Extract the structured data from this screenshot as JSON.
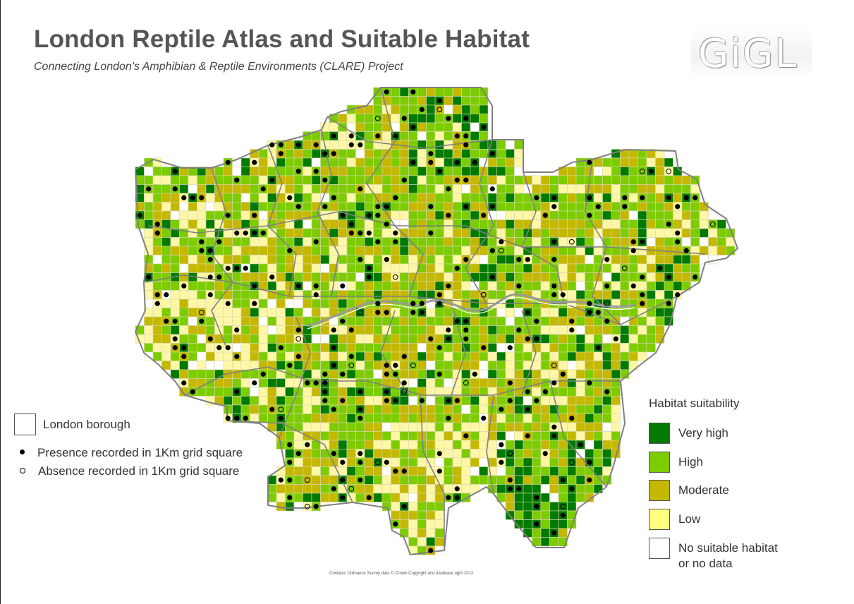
{
  "title": "London Reptile Atlas and Suitable Habitat",
  "subtitle": "Connecting London's Amphibian & Reptile Environments (CLARE) Project",
  "logo_text": "GiGL",
  "legend_left": {
    "borough_label": "London borough",
    "presence_label": "Presence recorded in 1Km grid square",
    "absence_label": "Absence recorded in 1Km grid square"
  },
  "legend_right": {
    "title": "Habitat suitability",
    "items": [
      {
        "label": "Very high",
        "color": "#007a00"
      },
      {
        "label": "High",
        "color": "#7dcc00"
      },
      {
        "label": "Moderate",
        "color": "#c4b800"
      },
      {
        "label": "Low",
        "color": "#ffff80"
      },
      {
        "label": "No suitable habitat or no data",
        "line1": "No suitable habitat",
        "line2": "or no data",
        "color": "#ffffff"
      }
    ]
  },
  "credit": "Contains Ordnance Survey data © Crown Copyright and database right 2012",
  "map_colors": {
    "very_high": "#007a00",
    "high": "#7dcc00",
    "moderate": "#c4b800",
    "low": "#fff7a8",
    "none": "#ffffff",
    "grid_line": "#d8d8b0",
    "borough_line": "#808080",
    "river": "#9a9a9a"
  }
}
